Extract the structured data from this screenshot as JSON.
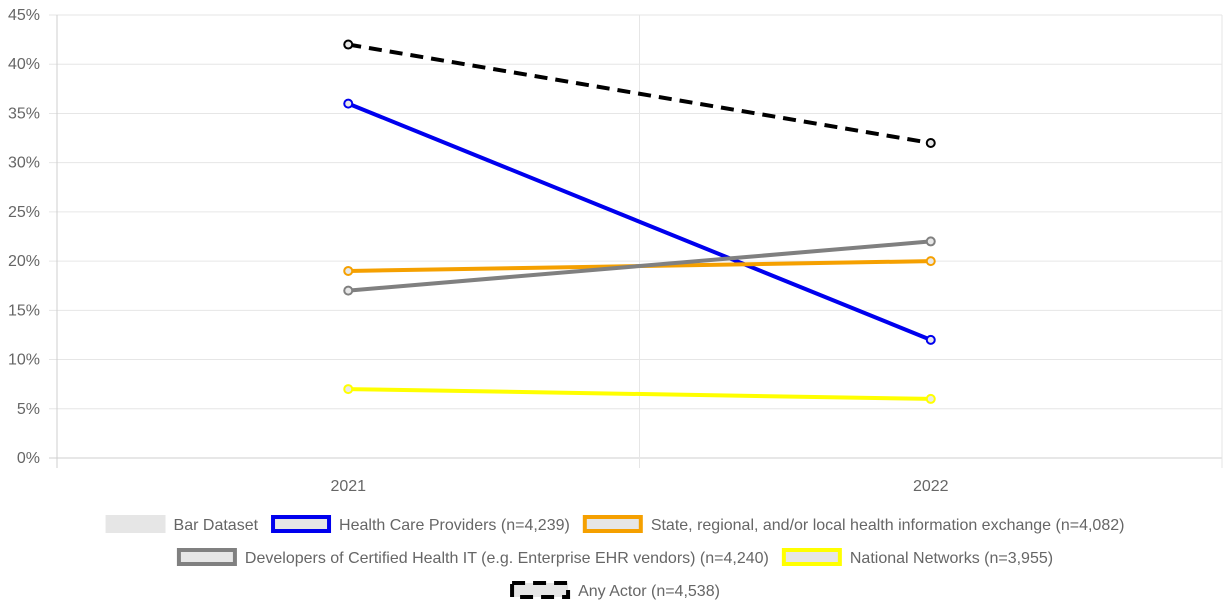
{
  "chart_data": {
    "type": "line",
    "title": "",
    "xlabel": "",
    "ylabel": "",
    "x": [
      "2021",
      "2022"
    ],
    "ylim": [
      0,
      45
    ],
    "y_ticks": [
      "0%",
      "5%",
      "10%",
      "15%",
      "20%",
      "25%",
      "30%",
      "35%",
      "40%",
      "45%"
    ],
    "grid": true,
    "legend_position": "bottom",
    "series": [
      {
        "name": "Health Care Providers (n=4,239)",
        "values": [
          36,
          12
        ],
        "color": "#0000ee",
        "dashed": false
      },
      {
        "name": "State, regional, and/or local health information exchange (n=4,082)",
        "values": [
          19,
          20
        ],
        "color": "#f5a000",
        "dashed": false
      },
      {
        "name": "Developers of Certified Health IT  (e.g. Enterprise EHR vendors) (n=4,240)",
        "values": [
          17,
          22
        ],
        "color": "#808080",
        "dashed": false
      },
      {
        "name": "National Networks (n=3,955)",
        "values": [
          7,
          6
        ],
        "color": "#ffff00",
        "dashed": false
      },
      {
        "name": "Any Actor (n=4,538)",
        "values": [
          42,
          32
        ],
        "color": "#000000",
        "dashed": true
      }
    ],
    "legend": [
      {
        "label": "Bar Dataset",
        "color": "#e0e0e0",
        "type": "bar"
      },
      {
        "label": "Health Care Providers (n=4,239)",
        "color": "#0000ee",
        "type": "line"
      },
      {
        "label": "State, regional, and/or local health information exchange (n=4,082)",
        "color": "#f5a000",
        "type": "line"
      },
      {
        "label": "Developers of Certified Health IT  (e.g. Enterprise EHR vendors) (n=4,240)",
        "color": "#808080",
        "type": "line"
      },
      {
        "label": "National Networks (n=3,955)",
        "color": "#ffff00",
        "type": "line"
      },
      {
        "label": "Any Actor (n=4,538)",
        "color": "#000000",
        "type": "dashed"
      }
    ]
  }
}
